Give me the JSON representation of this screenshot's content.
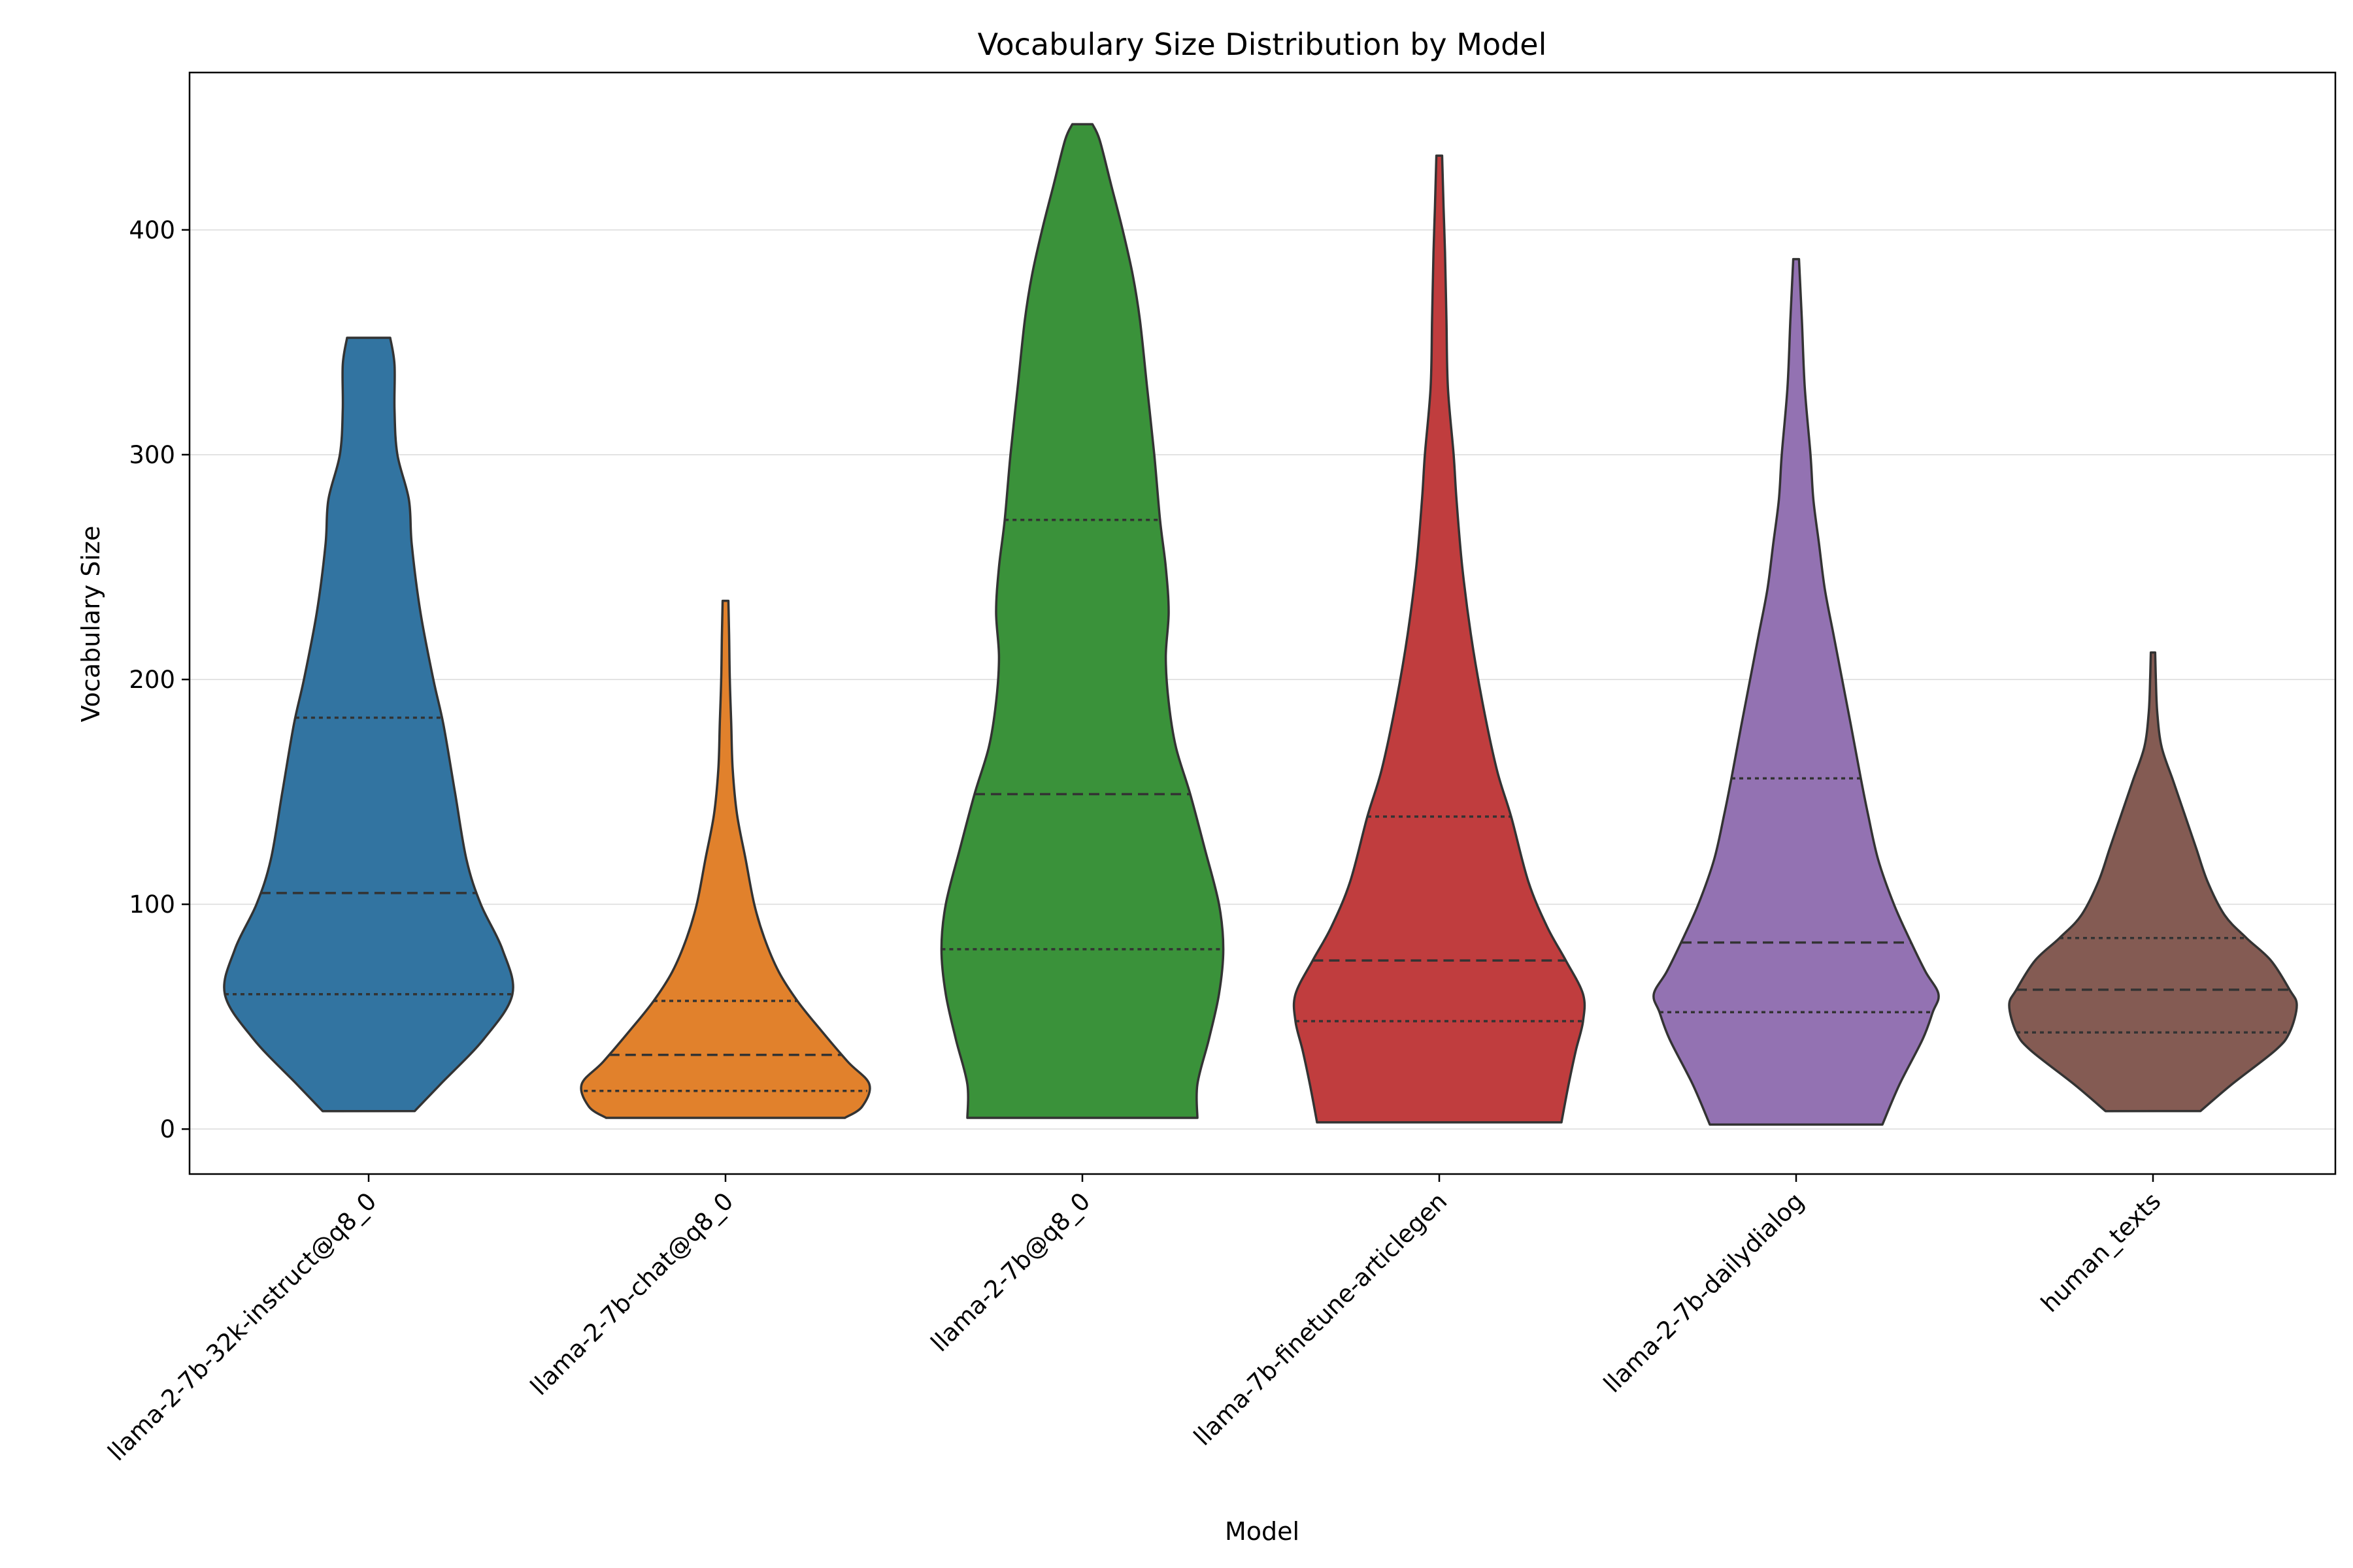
{
  "chart_data": {
    "type": "violin",
    "title": "Vocabulary Size Distribution by Model",
    "xlabel": "Model",
    "ylabel": "Vocabulary Size",
    "ylim": [
      -20,
      470
    ],
    "yticks": [
      0,
      100,
      200,
      300,
      400
    ],
    "grid": "horizontal",
    "categories": [
      "llama-2-7b-32k-instruct@q8_0",
      "llama-2-7b-chat@q8_0",
      "llama-2-7b@q8_0",
      "llama-7b-finetune-articlegen",
      "llama-2-7b-dailydialog",
      "human_texts"
    ],
    "series": [
      {
        "color": "#3274a1",
        "min": 8,
        "max": 352,
        "q1": 60,
        "median": 105,
        "q3": 183,
        "density": [
          [
            8,
            0.32
          ],
          [
            20,
            0.5
          ],
          [
            40,
            0.8
          ],
          [
            60,
            1.0
          ],
          [
            80,
            0.93
          ],
          [
            100,
            0.78
          ],
          [
            120,
            0.68
          ],
          [
            150,
            0.6
          ],
          [
            180,
            0.52
          ],
          [
            200,
            0.45
          ],
          [
            230,
            0.36
          ],
          [
            260,
            0.3
          ],
          [
            280,
            0.28
          ],
          [
            300,
            0.2
          ],
          [
            320,
            0.18
          ],
          [
            340,
            0.18
          ],
          [
            352,
            0.15
          ]
        ]
      },
      {
        "color": "#e1812c",
        "min": 5,
        "max": 235,
        "q1": 17,
        "median": 33,
        "q3": 57,
        "density": [
          [
            5,
            0.83
          ],
          [
            10,
            0.95
          ],
          [
            20,
            1.0
          ],
          [
            30,
            0.85
          ],
          [
            45,
            0.65
          ],
          [
            57,
            0.5
          ],
          [
            70,
            0.37
          ],
          [
            85,
            0.27
          ],
          [
            100,
            0.2
          ],
          [
            120,
            0.14
          ],
          [
            140,
            0.08
          ],
          [
            160,
            0.05
          ],
          [
            180,
            0.04
          ],
          [
            200,
            0.03
          ],
          [
            220,
            0.025
          ],
          [
            235,
            0.02
          ]
        ]
      },
      {
        "color": "#3a923a",
        "min": 5,
        "max": 447,
        "q1": 80,
        "median": 149,
        "q3": 271,
        "density": [
          [
            5,
            0.8
          ],
          [
            20,
            0.8
          ],
          [
            40,
            0.88
          ],
          [
            60,
            0.95
          ],
          [
            80,
            0.98
          ],
          [
            100,
            0.95
          ],
          [
            125,
            0.85
          ],
          [
            149,
            0.75
          ],
          [
            170,
            0.65
          ],
          [
            190,
            0.6
          ],
          [
            210,
            0.58
          ],
          [
            230,
            0.6
          ],
          [
            250,
            0.58
          ],
          [
            271,
            0.54
          ],
          [
            300,
            0.5
          ],
          [
            330,
            0.45
          ],
          [
            360,
            0.4
          ],
          [
            380,
            0.35
          ],
          [
            400,
            0.28
          ],
          [
            420,
            0.2
          ],
          [
            440,
            0.12
          ],
          [
            447,
            0.07
          ]
        ]
      },
      {
        "color": "#c03d3e",
        "min": 3,
        "max": 433,
        "q1": 48,
        "median": 75,
        "q3": 139,
        "density": [
          [
            3,
            0.85
          ],
          [
            20,
            0.9
          ],
          [
            35,
            0.95
          ],
          [
            48,
            1.0
          ],
          [
            60,
            1.0
          ],
          [
            75,
            0.88
          ],
          [
            90,
            0.75
          ],
          [
            110,
            0.62
          ],
          [
            139,
            0.5
          ],
          [
            160,
            0.4
          ],
          [
            190,
            0.3
          ],
          [
            220,
            0.22
          ],
          [
            250,
            0.16
          ],
          [
            280,
            0.12
          ],
          [
            300,
            0.1
          ],
          [
            330,
            0.06
          ],
          [
            360,
            0.05
          ],
          [
            390,
            0.04
          ],
          [
            410,
            0.03
          ],
          [
            433,
            0.02
          ]
        ]
      },
      {
        "color": "#9372b2",
        "min": 2,
        "max": 387,
        "q1": 52,
        "median": 83,
        "q3": 156,
        "density": [
          [
            2,
            0.6
          ],
          [
            20,
            0.72
          ],
          [
            40,
            0.88
          ],
          [
            52,
            0.95
          ],
          [
            60,
            0.99
          ],
          [
            70,
            0.9
          ],
          [
            83,
            0.8
          ],
          [
            100,
            0.68
          ],
          [
            120,
            0.57
          ],
          [
            140,
            0.5
          ],
          [
            156,
            0.45
          ],
          [
            180,
            0.38
          ],
          [
            200,
            0.32
          ],
          [
            220,
            0.26
          ],
          [
            240,
            0.2
          ],
          [
            260,
            0.16
          ],
          [
            280,
            0.12
          ],
          [
            300,
            0.1
          ],
          [
            330,
            0.06
          ],
          [
            360,
            0.04
          ],
          [
            387,
            0.02
          ]
        ]
      },
      {
        "color": "#845b53",
        "min": 8,
        "max": 212,
        "q1": 43,
        "median": 62,
        "q3": 85,
        "density": [
          [
            8,
            0.33
          ],
          [
            20,
            0.55
          ],
          [
            35,
            0.85
          ],
          [
            43,
            0.95
          ],
          [
            55,
            1.0
          ],
          [
            62,
            0.95
          ],
          [
            75,
            0.82
          ],
          [
            85,
            0.65
          ],
          [
            95,
            0.5
          ],
          [
            110,
            0.38
          ],
          [
            125,
            0.3
          ],
          [
            140,
            0.22
          ],
          [
            155,
            0.14
          ],
          [
            170,
            0.06
          ],
          [
            185,
            0.03
          ],
          [
            200,
            0.02
          ],
          [
            212,
            0.015
          ]
        ]
      }
    ]
  }
}
